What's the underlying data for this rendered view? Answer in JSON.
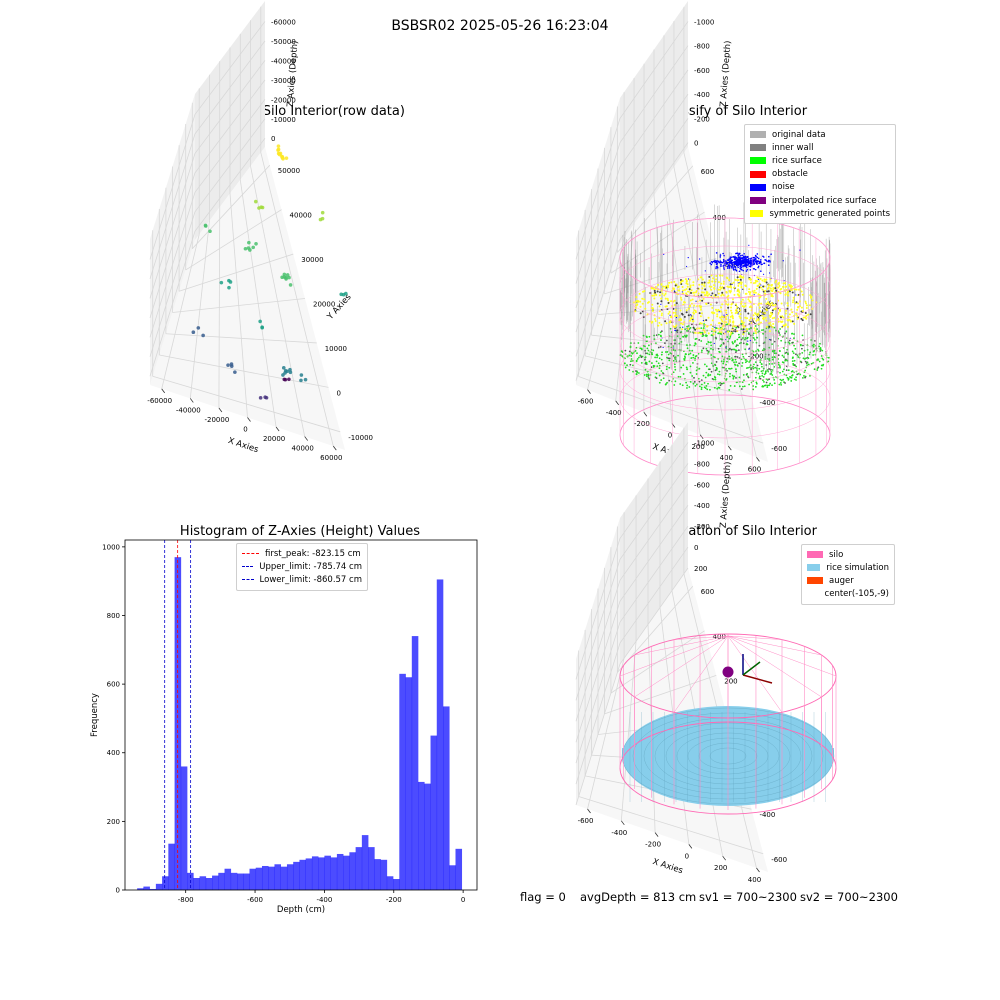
{
  "suptitle": "BSBSR02 2025-05-26 16:23:04",
  "chart_data": [
    {
      "type": "scatter",
      "title": "3D Plot of Silo Interior(row data)",
      "xlabel": "X Axies",
      "ylabel": "Y Axies",
      "zlabel": "Z Axies (Depth)",
      "x_ticks": [
        "-60000",
        "-40000",
        "-20000",
        "0",
        "20000",
        "40000",
        "60000"
      ],
      "y_ticks": [
        "-10000",
        "0",
        "10000",
        "20000",
        "30000",
        "40000",
        "50000"
      ],
      "z_ticks": [
        "0",
        "-10000",
        "-20000",
        "-30000",
        "-40000",
        "-50000",
        "-60000"
      ],
      "colormap": "viridis"
    },
    {
      "type": "scatter",
      "title": "3D classify of Silo Interior",
      "xlabel": "X Axies",
      "ylabel": "Y Axies",
      "zlabel": "Z Axies (Depth)",
      "x_ticks": [
        "-600",
        "-400",
        "-200",
        "0",
        "200",
        "400",
        "600"
      ],
      "y_ticks": [
        "-600",
        "-400",
        "-200",
        "0",
        "200",
        "400",
        "600"
      ],
      "z_ticks": [
        "0",
        "-200",
        "-400",
        "-600",
        "-800",
        "-1000"
      ],
      "legend": [
        {
          "label": "original data",
          "color": "#b0b0b0"
        },
        {
          "label": "inner wall",
          "color": "#808080"
        },
        {
          "label": "rice surface",
          "color": "#00ff00"
        },
        {
          "label": "obstacle",
          "color": "#ff0000"
        },
        {
          "label": "noise",
          "color": "#0000ff"
        },
        {
          "label": "interpolated rice surface",
          "color": "#800080"
        },
        {
          "label": "symmetric generated points",
          "color": "#ffff00"
        }
      ]
    },
    {
      "type": "bar",
      "title": "Histogram of Z-Axies (Height) Values",
      "xlabel": "Depth (cm)",
      "ylabel": "Frequency",
      "xlim": [
        -975,
        40
      ],
      "ylim": [
        0,
        1020
      ],
      "x_ticks": [
        "-800",
        "-600",
        "-400",
        "-200",
        "0"
      ],
      "y_ticks": [
        "0",
        "200",
        "400",
        "600",
        "800",
        "1000"
      ],
      "bin_edges_start": -940,
      "bin_width": 18,
      "values": [
        5,
        10,
        3,
        18,
        40,
        135,
        970,
        360,
        50,
        35,
        40,
        35,
        42,
        50,
        62,
        50,
        48,
        48,
        62,
        65,
        70,
        68,
        75,
        68,
        75,
        82,
        88,
        92,
        98,
        95,
        100,
        95,
        105,
        100,
        110,
        125,
        160,
        125,
        90,
        88,
        40,
        32,
        630,
        620,
        740,
        315,
        310,
        450,
        905,
        535,
        72,
        120
      ],
      "color": "#0000ff",
      "vlines": [
        {
          "label": "first_peak: -823.15 cm",
          "x": -823.15,
          "color": "#ff0000"
        },
        {
          "label": "Upper_limit: -785.74 cm",
          "x": -785.74,
          "color": "#0000cc"
        },
        {
          "label": "Lower_limit: -860.57 cm",
          "x": -860.57,
          "color": "#0000cc"
        }
      ]
    },
    {
      "type": "scatter",
      "title": "3D simulation of Silo Interior",
      "xlabel": "X Axies",
      "ylabel": "Y Axies",
      "zlabel": "Z Axies (Depth)",
      "x_ticks": [
        "-600",
        "-400",
        "-200",
        "0",
        "200",
        "400"
      ],
      "y_ticks": [
        "-600",
        "-400",
        "-200",
        "0",
        "200",
        "400",
        "600"
      ],
      "z_ticks": [
        "200",
        "0",
        "-200",
        "-400",
        "-600",
        "-800",
        "-1000"
      ],
      "legend": [
        {
          "label": "silo",
          "color": "#ff69b4"
        },
        {
          "label": "rice simulation",
          "color": "#87ceeb"
        },
        {
          "label": "auger",
          "color": "#ff4500"
        },
        {
          "label": "center(-105,-9)",
          "color": "#ffffff"
        }
      ]
    }
  ],
  "footer": {
    "flag": "flag = 0",
    "avg": "avgDepth = 813 cm",
    "sv1": "sv1 = 700~2300",
    "sv2": "sv2 = 700~2300"
  }
}
